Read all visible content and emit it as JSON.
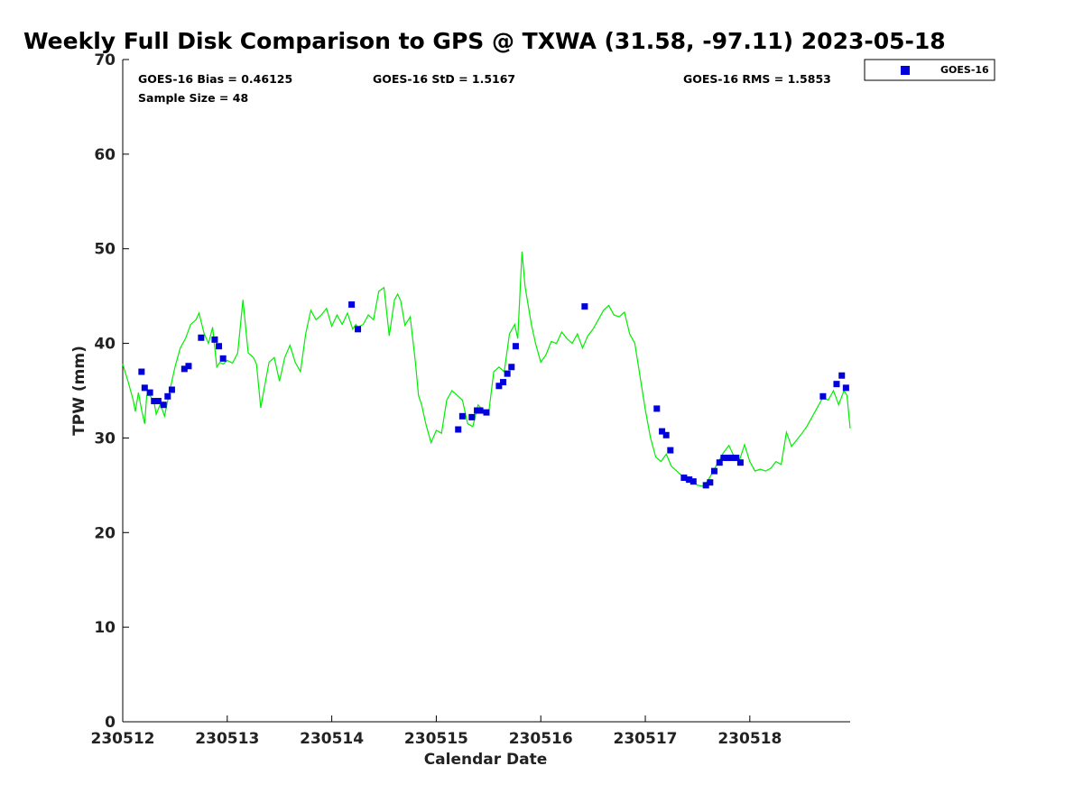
{
  "chart_data": {
    "type": "scatter",
    "title": "Weekly Full Disk Comparison to GPS @ TXWA (31.58, -97.11) 2023-05-18",
    "xlabel": "Calendar Date",
    "ylabel": "TPW (mm)",
    "xlim": [
      0,
      6.96
    ],
    "ylim": [
      0,
      70
    ],
    "x_tick_labels": [
      "230512",
      "230513",
      "230514",
      "230515",
      "230516",
      "230517",
      "230518"
    ],
    "y_tick_labels": [
      "0",
      "10",
      "20",
      "30",
      "40",
      "50",
      "60",
      "70"
    ],
    "grid": false,
    "legend_position": "outside-top-right",
    "stats": {
      "bias": "GOES-16 Bias = 0.46125",
      "std": "GOES-16 StD = 1.5167",
      "rms": "GOES-16 RMS = 1.5853",
      "sample_size": "Sample Size = 48"
    },
    "colors": {
      "goes": "#0000dd",
      "gps": "#00ee00"
    },
    "series": [
      {
        "name": "GOES-16",
        "kind": "scatter",
        "x": [
          0.18,
          0.21,
          0.26,
          0.3,
          0.34,
          0.39,
          0.43,
          0.47,
          0.59,
          0.63,
          0.75,
          0.88,
          0.92,
          0.96,
          2.19,
          2.25,
          3.21,
          3.25,
          3.34,
          3.39,
          3.42,
          3.48,
          3.6,
          3.64,
          3.68,
          3.72,
          3.76,
          4.42,
          5.11,
          5.16,
          5.2,
          5.24,
          5.37,
          5.42,
          5.46,
          5.58,
          5.62,
          5.66,
          5.71,
          5.75,
          5.79,
          5.83,
          5.87,
          5.91,
          6.7,
          6.83,
          6.88,
          6.92
        ],
        "y": [
          37.0,
          35.3,
          34.8,
          33.9,
          33.9,
          33.5,
          34.4,
          35.1,
          37.3,
          37.6,
          40.6,
          40.4,
          39.7,
          38.4,
          44.1,
          41.5,
          30.9,
          32.3,
          32.2,
          32.9,
          32.9,
          32.7,
          35.5,
          35.9,
          36.8,
          37.5,
          39.7,
          43.9,
          33.1,
          30.7,
          30.3,
          28.7,
          25.8,
          25.6,
          25.4,
          25.0,
          25.3,
          26.5,
          27.4,
          27.9,
          27.9,
          27.9,
          27.9,
          27.4,
          34.4,
          35.7,
          36.6,
          35.3
        ]
      },
      {
        "name": "GPS",
        "kind": "line",
        "x": [
          0.0,
          0.05,
          0.1,
          0.12,
          0.15,
          0.18,
          0.21,
          0.23,
          0.26,
          0.3,
          0.32,
          0.36,
          0.4,
          0.45,
          0.5,
          0.55,
          0.6,
          0.65,
          0.7,
          0.73,
          0.78,
          0.82,
          0.86,
          0.9,
          0.93,
          0.96,
          1.0,
          1.05,
          1.1,
          1.15,
          1.2,
          1.25,
          1.28,
          1.32,
          1.35,
          1.4,
          1.45,
          1.5,
          1.55,
          1.6,
          1.65,
          1.7,
          1.75,
          1.8,
          1.85,
          1.9,
          1.95,
          2.0,
          2.05,
          2.1,
          2.15,
          2.2,
          2.23,
          2.25,
          2.3,
          2.35,
          2.4,
          2.45,
          2.5,
          2.55,
          2.6,
          2.63,
          2.66,
          2.7,
          2.75,
          2.8,
          2.83,
          2.86,
          2.9,
          2.95,
          3.0,
          3.05,
          3.1,
          3.15,
          3.2,
          3.25,
          3.3,
          3.35,
          3.4,
          3.45,
          3.5,
          3.55,
          3.6,
          3.65,
          3.7,
          3.75,
          3.78,
          3.82,
          3.85,
          3.88,
          3.91,
          3.95,
          4.0,
          4.05,
          4.1,
          4.15,
          4.2,
          4.25,
          4.3,
          4.35,
          4.4,
          4.45,
          4.5,
          4.55,
          4.6,
          4.65,
          4.7,
          4.75,
          4.8,
          4.85,
          4.9,
          4.95,
          5.0,
          5.05,
          5.1,
          5.15,
          5.2,
          5.25,
          5.3,
          5.35,
          5.4,
          5.45,
          5.5,
          5.55,
          5.6,
          5.65,
          5.7,
          5.75,
          5.8,
          5.85,
          5.9,
          5.95,
          6.0,
          6.05,
          6.1,
          6.15,
          6.2,
          6.25,
          6.3,
          6.35,
          6.4,
          6.45,
          6.5,
          6.55,
          6.6,
          6.65,
          6.7,
          6.75,
          6.8,
          6.85,
          6.9,
          6.93,
          6.96
        ],
        "y": [
          37.8,
          36.0,
          34.0,
          32.8,
          34.8,
          33.0,
          31.5,
          34.5,
          34.5,
          33.8,
          32.5,
          33.6,
          32.3,
          35.0,
          37.5,
          39.5,
          40.5,
          42.0,
          42.5,
          43.2,
          41.0,
          40.0,
          41.7,
          37.5,
          38.0,
          37.8,
          38.2,
          37.9,
          39.0,
          44.6,
          39.0,
          38.5,
          37.8,
          33.2,
          35.0,
          38.0,
          38.5,
          36.0,
          38.5,
          39.8,
          38.0,
          37.0,
          41.0,
          43.5,
          42.5,
          43.0,
          43.7,
          41.8,
          43.0,
          42.0,
          43.2,
          41.5,
          42.0,
          41.7,
          42.0,
          43.0,
          42.5,
          45.5,
          45.9,
          40.8,
          44.6,
          45.2,
          44.5,
          41.9,
          42.8,
          38.0,
          34.5,
          33.5,
          31.5,
          29.5,
          30.8,
          30.5,
          34.0,
          35.0,
          34.5,
          34.0,
          31.5,
          31.2,
          33.5,
          32.9,
          32.5,
          37.0,
          37.5,
          37.0,
          41.0,
          42.0,
          40.5,
          49.7,
          46.0,
          44.0,
          42.0,
          40.0,
          38.0,
          38.8,
          40.2,
          40.0,
          41.2,
          40.5,
          40.0,
          41.0,
          39.5,
          40.8,
          41.5,
          42.5,
          43.5,
          44.0,
          43.0,
          42.8,
          43.3,
          41.0,
          40.0,
          36.5,
          33.0,
          30.0,
          28.0,
          27.5,
          28.3,
          27.0,
          26.5,
          26.0,
          25.3,
          25.5,
          25.0,
          24.9,
          25.5,
          26.5,
          27.5,
          28.5,
          29.2,
          28.0,
          27.6,
          29.3,
          27.5,
          26.5,
          26.7,
          26.5,
          26.8,
          27.5,
          27.2,
          30.6,
          29.1,
          29.8,
          30.5,
          31.3,
          32.3,
          33.3,
          34.3,
          34.0,
          35.0,
          33.5,
          35.0,
          34.5,
          31.0
        ]
      }
    ]
  }
}
